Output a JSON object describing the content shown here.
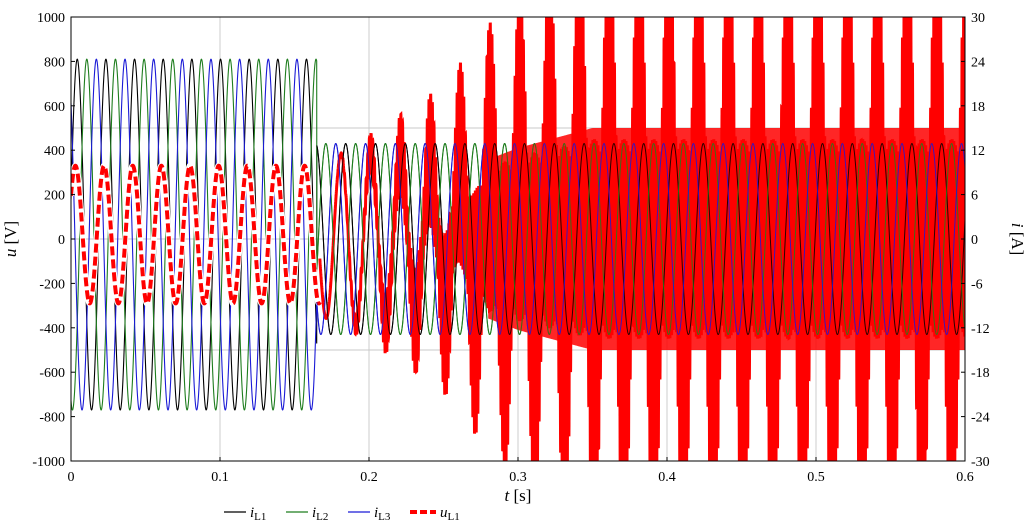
{
  "chart_data": {
    "type": "line",
    "x_axis": {
      "label_var": "t",
      "label_unit": " [s]",
      "range": [
        0,
        0.6
      ],
      "ticks": [
        0,
        0.1,
        0.2,
        0.3,
        0.4,
        0.5,
        0.6
      ],
      "tick_labels": [
        "0",
        "0.1",
        "0.2",
        "0.3",
        "0.4",
        "0.5",
        "0.6"
      ]
    },
    "y_left": {
      "label_var": "u",
      "label_unit": " [V]",
      "range": [
        -1000,
        1000
      ],
      "ticks": [
        -1000,
        -800,
        -600,
        -400,
        -200,
        0,
        200,
        400,
        600,
        800,
        1000
      ],
      "tick_labels": [
        "-1000",
        "-800",
        "-600",
        "-400",
        "-200",
        "0",
        "200",
        "400",
        "600",
        "800",
        "1000"
      ]
    },
    "y_right": {
      "label_var": "i",
      "label_unit": " [A]",
      "range": [
        -30,
        30
      ],
      "ticks": [
        -30,
        -24,
        -18,
        -12,
        -6,
        0,
        6,
        12,
        18,
        24,
        30
      ],
      "tick_labels": [
        "-30",
        "-24",
        "-18",
        "-12",
        "-6",
        "0",
        "6",
        "12",
        "18",
        "24",
        "30"
      ]
    },
    "grid": true,
    "legend_position": "bottom-center",
    "series": [
      {
        "name": "iL1",
        "name_base": "i",
        "name_sub": "L1",
        "color": "#000000",
        "style": "solid",
        "axis": "left",
        "description_values": {
          "frequency_hz_before_0.165s": 52,
          "amplitude_before_0.165s": 790,
          "offset_before_0.165s": 20,
          "frequency_hz_after_0.165s": 50,
          "amplitude_after_0.165s": 430,
          "offset_after_0.165s": 0,
          "switch_time_s": 0.165
        }
      },
      {
        "name": "iL2",
        "name_base": "i",
        "name_sub": "L2",
        "color": "#1e7d1e",
        "style": "solid",
        "axis": "left",
        "description_values": {
          "frequency_hz_before_0.165s": 52,
          "amplitude_before_0.165s": 790,
          "offset_before_0.165s": 20,
          "frequency_hz_after_0.165s": 50,
          "amplitude_after_0.165s": 430,
          "offset_after_0.165s": 0,
          "switch_time_s": 0.165
        }
      },
      {
        "name": "iL3",
        "name_base": "i",
        "name_sub": "L3",
        "color": "#1a1ad6",
        "style": "solid",
        "axis": "left",
        "description_values": {
          "frequency_hz_before_0.165s": 52,
          "amplitude_before_0.165s": 790,
          "offset_before_0.165s": 20,
          "frequency_hz_after_0.165s": 50,
          "amplitude_after_0.165s": 430,
          "offset_after_0.165s": 0,
          "switch_time_s": 0.165
        }
      },
      {
        "name": "uL1",
        "name_base": "u",
        "name_sub": "L1",
        "color": "#ff0000",
        "style": "dashed",
        "axis": "left",
        "description_values": {
          "frequency_hz_before_0.165s": 52,
          "amplitude_before_0.165s": 310,
          "offset_before_0.165s": 20,
          "envelope_points": [
            [
              0.165,
              340
            ],
            [
              0.2,
              440
            ],
            [
              0.25,
              560
            ],
            [
              0.3,
              820
            ],
            [
              0.35,
              1000
            ],
            [
              0.6,
              1000
            ]
          ],
          "carrier_frequency_hz_after_0.165s": 50,
          "dense_fill_start_s": 0.28
        }
      }
    ]
  }
}
